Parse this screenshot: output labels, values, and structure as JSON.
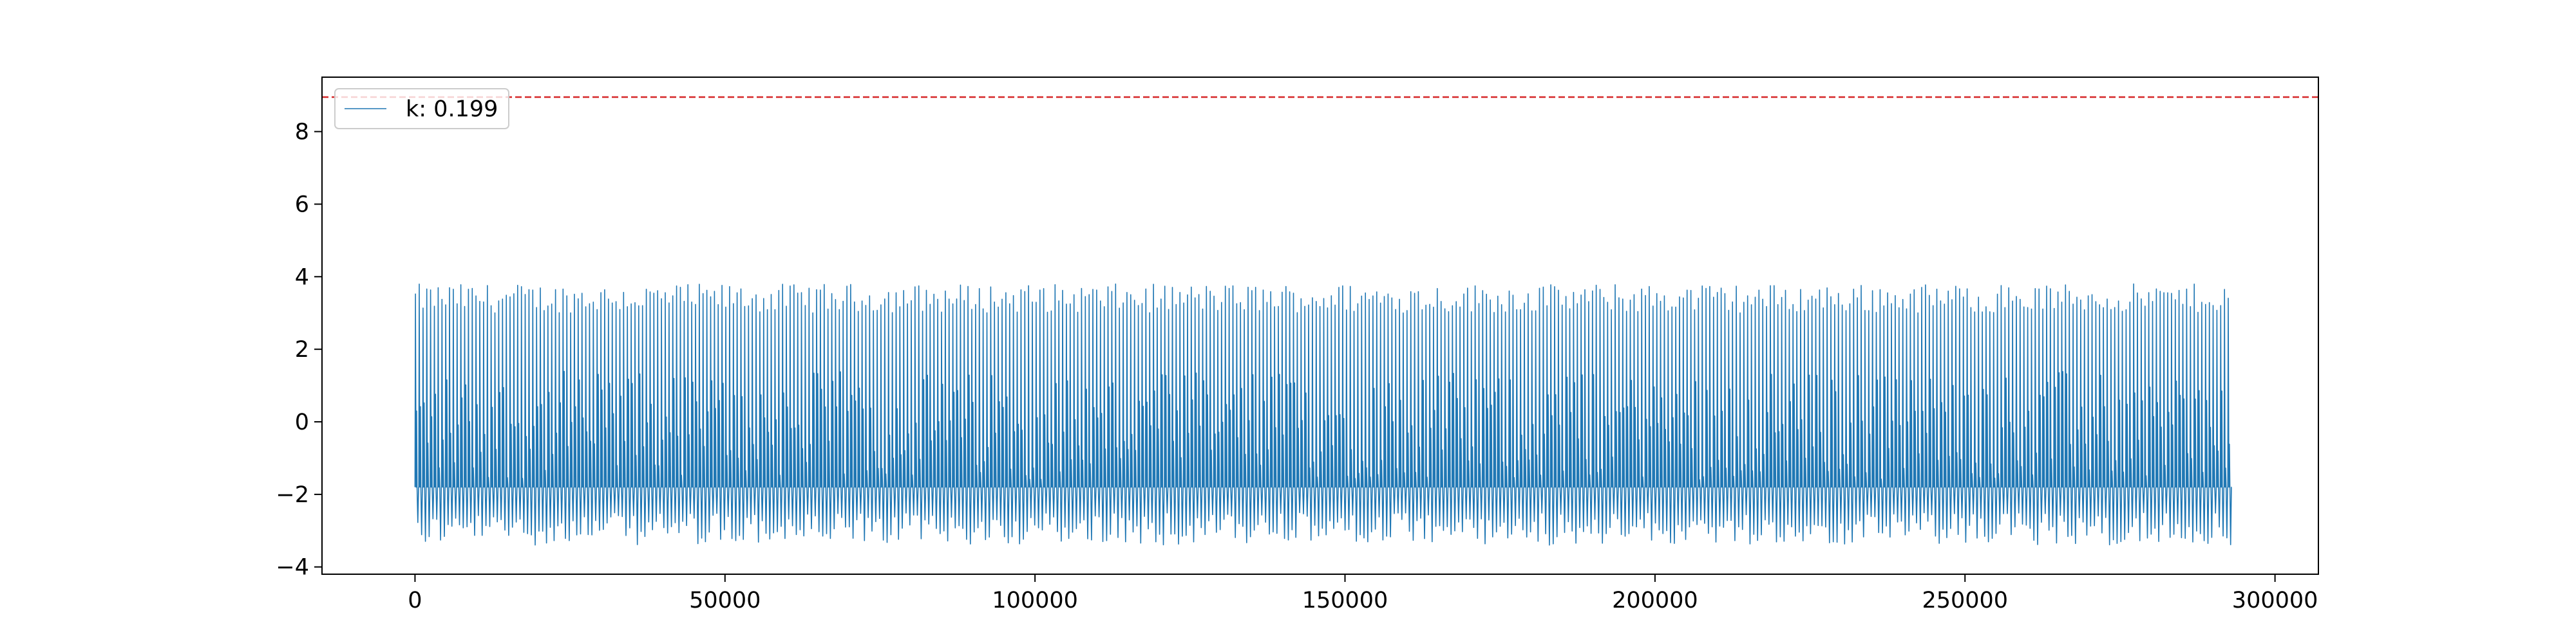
{
  "chart_data": {
    "type": "line",
    "title": "",
    "xlabel": "",
    "ylabel": "",
    "xlim": [
      -15000,
      307000
    ],
    "ylim": [
      -4.2,
      9.5
    ],
    "x_ticks": [
      0,
      50000,
      100000,
      150000,
      200000,
      250000,
      300000
    ],
    "y_ticks": [
      -4,
      -2,
      0,
      2,
      4,
      6,
      8
    ],
    "x_tick_labels": [
      "0",
      "50000",
      "100000",
      "150000",
      "200000",
      "250000",
      "300000"
    ],
    "y_tick_labels": [
      "−4",
      "−2",
      "0",
      "2",
      "4",
      "6",
      "8"
    ],
    "grid": false,
    "legend_position": "top-left",
    "threshold": {
      "y": 8.95,
      "color": "#d62728",
      "style": "dashed"
    },
    "series": [
      {
        "name": "k: 0.199",
        "color": "#1f77b4",
        "x_range": [
          0,
          293000
        ],
        "baseline": -1.8,
        "peak_range": [
          3.0,
          3.8
        ],
        "trough_range": [
          -2.5,
          -3.4
        ],
        "approx_cycles": 480,
        "values": [
          -1.8,
          3.2,
          -1.8,
          1.5,
          -3.1,
          3.4,
          -1.8,
          1.0,
          -2.9,
          3.5,
          -1.8,
          0.8,
          -3.2,
          3.1,
          -1.8,
          1.2,
          -2.8,
          3.6,
          -1.8,
          0.5,
          -3.3,
          3.3,
          -1.8,
          1.4,
          -2.7,
          3.7,
          -1.8,
          0.9,
          -3.0,
          3.2,
          -1.8,
          1.1,
          -3.4,
          3.4,
          -1.8,
          0.7,
          -2.9,
          3.5,
          -1.8,
          1.3,
          -3.1,
          3.6,
          -1.8,
          0.6,
          -2.8,
          3.3,
          -1.8,
          1.0,
          -3.2,
          3.4,
          -1.8,
          1.2,
          -3.0,
          3.7,
          -1.8,
          0.8,
          -3.3,
          3.1,
          -1.8,
          1.5,
          -2.7,
          3.5,
          -1.8,
          0.9,
          -3.1,
          3.4,
          -1.8,
          1.1,
          -2.9,
          3.6,
          -1.8,
          0.7,
          -3.4,
          3.2,
          -1.8,
          1.3,
          -2.8,
          3.5,
          -1.8,
          1.0
        ]
      }
    ]
  },
  "legend": {
    "entries": [
      {
        "label": "k: 0.199",
        "color": "#1f77b4"
      }
    ]
  }
}
